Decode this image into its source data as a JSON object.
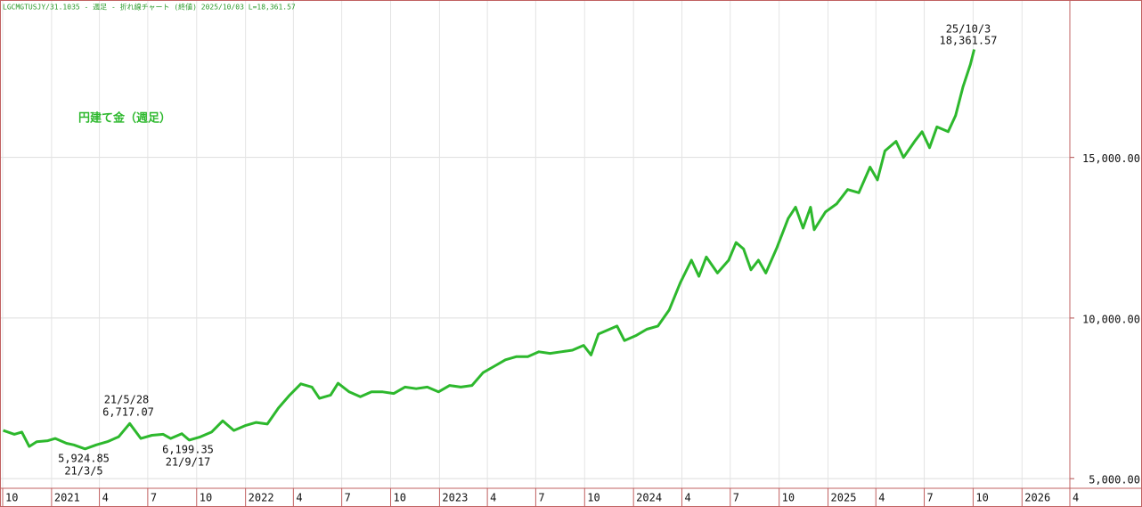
{
  "chart_data": {
    "type": "line",
    "title": "LGCMGTUSJY/31.1035 - 週足 - 折れ線チャート (終値)  2025/10/03  L=18,361.57",
    "annotations": [
      "21/5/28",
      "6,717.07",
      "5,924.85",
      "21/3/5",
      "6,199.35",
      "21/9/17",
      "25/10/3",
      "18,361.57"
    ],
    "x": [
      "2020-10-02",
      "2020-10-23",
      "2020-11-06",
      "2020-11-20",
      "2020-12-04",
      "2020-12-25",
      "2021-01-08",
      "2021-01-29",
      "2021-02-12",
      "2021-03-05",
      "2021-03-26",
      "2021-04-16",
      "2021-05-07",
      "2021-05-28",
      "2021-06-18",
      "2021-07-09",
      "2021-07-30",
      "2021-08-13",
      "2021-09-03",
      "2021-09-17",
      "2021-10-08",
      "2021-10-29",
      "2021-11-19",
      "2021-12-10",
      "2021-12-31",
      "2022-01-21",
      "2022-02-11",
      "2022-03-04",
      "2022-03-25",
      "2022-04-15",
      "2022-05-06",
      "2022-05-20",
      "2022-06-10",
      "2022-06-24",
      "2022-07-15",
      "2022-08-05",
      "2022-08-26",
      "2022-09-16",
      "2022-10-07",
      "2022-10-28",
      "2022-11-18",
      "2022-12-09",
      "2022-12-30",
      "2023-01-20",
      "2023-02-10",
      "2023-03-03",
      "2023-03-24",
      "2023-04-14",
      "2023-05-05",
      "2023-05-26",
      "2023-06-16",
      "2023-07-07",
      "2023-07-28",
      "2023-08-18",
      "2023-09-08",
      "2023-09-29",
      "2023-10-13",
      "2023-10-27",
      "2023-11-17",
      "2023-12-01",
      "2023-12-15",
      "2024-01-05",
      "2024-01-26",
      "2024-02-16",
      "2024-03-08",
      "2024-03-29",
      "2024-04-19",
      "2024-05-03",
      "2024-05-17",
      "2024-06-07",
      "2024-06-28",
      "2024-07-12",
      "2024-07-26",
      "2024-08-09",
      "2024-08-23",
      "2024-09-06",
      "2024-09-27",
      "2024-10-18",
      "2024-11-01",
      "2024-11-15",
      "2024-11-29",
      "2024-12-06",
      "2024-12-27",
      "2025-01-17",
      "2025-02-07",
      "2025-02-28",
      "2025-03-21",
      "2025-04-04",
      "2025-04-18",
      "2025-05-09",
      "2025-05-23",
      "2025-06-13",
      "2025-06-27",
      "2025-07-11",
      "2025-07-25",
      "2025-08-15",
      "2025-08-29",
      "2025-09-12",
      "2025-09-26",
      "2025-10-03"
    ],
    "series": [
      {
        "name": "円建て金（週足）",
        "color": "#2db82d",
        "values": [
          6500,
          6380,
          6450,
          6000,
          6150,
          6180,
          6250,
          6100,
          6050,
          5924.85,
          6050,
          6150,
          6300,
          6717.07,
          6250,
          6350,
          6380,
          6250,
          6400,
          6199.35,
          6300,
          6450,
          6800,
          6500,
          6650,
          6750,
          6700,
          7200,
          7600,
          7950,
          7850,
          7500,
          7600,
          7970,
          7700,
          7550,
          7700,
          7700,
          7650,
          7850,
          7800,
          7850,
          7700,
          7900,
          7850,
          7900,
          8300,
          8500,
          8700,
          8800,
          8800,
          8950,
          8900,
          8950,
          9000,
          9150,
          8850,
          9500,
          9650,
          9750,
          9300,
          9450,
          9650,
          9750,
          10250,
          11100,
          11800,
          11300,
          11900,
          11400,
          11800,
          12350,
          12150,
          11500,
          11800,
          11400,
          12200,
          13100,
          13450,
          12800,
          13450,
          12750,
          13300,
          13550,
          14000,
          13900,
          14700,
          14300,
          15200,
          15500,
          15000,
          15500,
          15800,
          15300,
          15950,
          15800,
          16300,
          17200,
          17900,
          18361.57
        ]
      }
    ],
    "xlim": [
      "2020-10-01",
      "2026-04-01"
    ],
    "xticks": [
      {
        "value": "2020-10-01",
        "label": "10"
      },
      {
        "value": "2021-01-01",
        "label": "2021"
      },
      {
        "value": "2021-04-01",
        "label": "4"
      },
      {
        "value": "2021-07-01",
        "label": "7"
      },
      {
        "value": "2021-10-01",
        "label": "10"
      },
      {
        "value": "2022-01-01",
        "label": "2022"
      },
      {
        "value": "2022-04-01",
        "label": "4"
      },
      {
        "value": "2022-07-01",
        "label": "7"
      },
      {
        "value": "2022-10-01",
        "label": "10"
      },
      {
        "value": "2023-01-01",
        "label": "2023"
      },
      {
        "value": "2023-04-01",
        "label": "4"
      },
      {
        "value": "2023-07-01",
        "label": "7"
      },
      {
        "value": "2023-10-01",
        "label": "10"
      },
      {
        "value": "2024-01-01",
        "label": "2024"
      },
      {
        "value": "2024-04-01",
        "label": "4"
      },
      {
        "value": "2024-07-01",
        "label": "7"
      },
      {
        "value": "2024-10-01",
        "label": "10"
      },
      {
        "value": "2025-01-01",
        "label": "2025"
      },
      {
        "value": "2025-04-01",
        "label": "4"
      },
      {
        "value": "2025-07-01",
        "label": "7"
      },
      {
        "value": "2025-10-01",
        "label": "10"
      },
      {
        "value": "2026-01-01",
        "label": "2026"
      },
      {
        "value": "2026-04-01",
        "label": "4"
      }
    ],
    "ylim": [
      4700,
      19900
    ],
    "yticks": [
      {
        "value": 5000,
        "label": "5,000.00"
      },
      {
        "value": 10000,
        "label": "10,000.00"
      },
      {
        "value": 15000,
        "label": "15,000.00"
      }
    ],
    "grid": true
  }
}
